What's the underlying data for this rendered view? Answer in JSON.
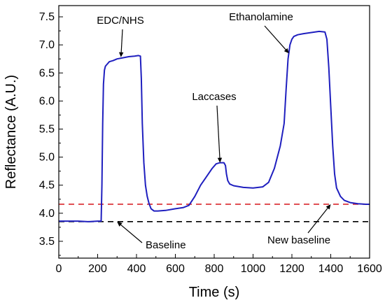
{
  "chart_data": {
    "type": "line",
    "title": "",
    "xlabel": "Time (s)",
    "ylabel": "Reflectance (A.U.)",
    "xlim": [
      0,
      1600
    ],
    "ylim": [
      3.2,
      7.7
    ],
    "xticks": [
      0,
      200,
      400,
      600,
      800,
      1000,
      1200,
      1400,
      1600
    ],
    "yticks": [
      3.5,
      4.0,
      4.5,
      5.0,
      5.5,
      6.0,
      6.5,
      7.0,
      7.5
    ],
    "grid": false,
    "legend": "none",
    "series": [
      {
        "color": "#1f1fbf",
        "x": [
          0,
          50,
          100,
          150,
          200,
          218,
          222,
          226,
          230,
          235,
          240,
          250,
          260,
          280,
          300,
          330,
          360,
          390,
          410,
          420,
          425,
          430,
          438,
          446,
          455,
          465,
          475,
          490,
          510,
          550,
          600,
          640,
          670,
          700,
          730,
          760,
          790,
          810,
          830,
          850,
          858,
          863,
          870,
          880,
          900,
          950,
          1000,
          1050,
          1080,
          1110,
          1140,
          1160,
          1170,
          1180,
          1190,
          1200,
          1210,
          1230,
          1260,
          1300,
          1340,
          1370,
          1380,
          1390,
          1400,
          1410,
          1420,
          1430,
          1450,
          1470,
          1500,
          1540,
          1580,
          1600
        ],
        "y": [
          3.86,
          3.86,
          3.86,
          3.85,
          3.86,
          3.86,
          4.5,
          5.6,
          6.3,
          6.55,
          6.62,
          6.66,
          6.7,
          6.72,
          6.75,
          6.77,
          6.79,
          6.8,
          6.81,
          6.8,
          6.4,
          5.6,
          4.9,
          4.5,
          4.3,
          4.17,
          4.08,
          4.04,
          4.04,
          4.05,
          4.08,
          4.1,
          4.14,
          4.3,
          4.5,
          4.65,
          4.8,
          4.88,
          4.9,
          4.9,
          4.85,
          4.7,
          4.58,
          4.52,
          4.49,
          4.46,
          4.45,
          4.47,
          4.55,
          4.8,
          5.2,
          5.6,
          6.2,
          6.75,
          7.0,
          7.1,
          7.15,
          7.18,
          7.2,
          7.22,
          7.24,
          7.23,
          7.1,
          6.6,
          5.9,
          5.2,
          4.7,
          4.45,
          4.3,
          4.23,
          4.19,
          4.17,
          4.16,
          4.16
        ]
      }
    ],
    "reference_lines": [
      {
        "y": 3.85,
        "color": "#000000",
        "style": "dashed"
      },
      {
        "y": 4.16,
        "color": "#d9262b",
        "style": "dashed"
      }
    ],
    "annotations": [
      {
        "text": "EDC/NHS",
        "arrow_to": [
          320,
          6.78
        ]
      },
      {
        "text": "Laccases",
        "arrow_to": [
          830,
          4.9
        ]
      },
      {
        "text": "Ethanolamine",
        "arrow_to": [
          1185,
          6.85
        ]
      },
      {
        "text": "Baseline",
        "arrow_to": [
          300,
          3.85
        ]
      },
      {
        "text": "New baseline",
        "arrow_to": [
          1400,
          4.16
        ]
      }
    ]
  }
}
